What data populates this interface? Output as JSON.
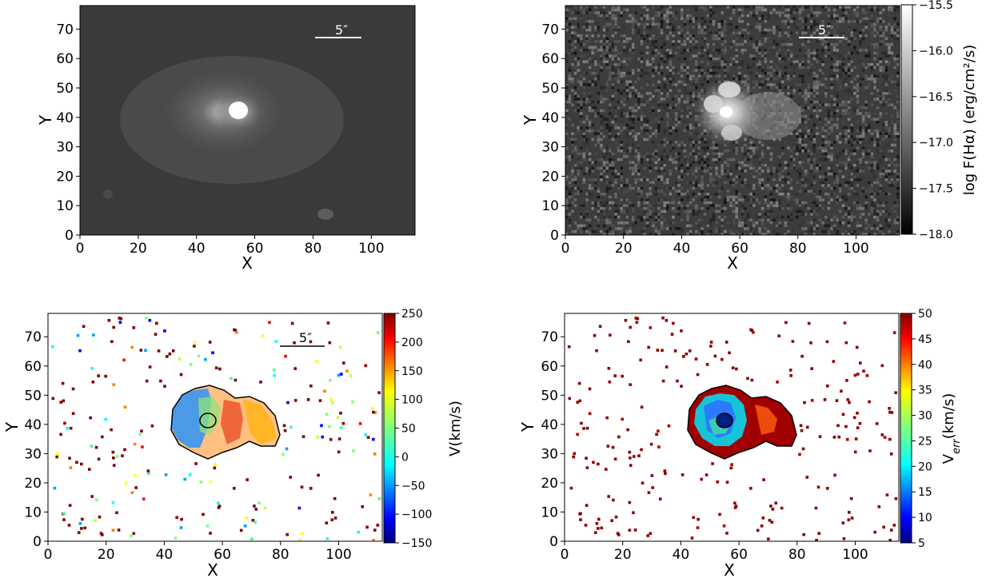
{
  "chart_data": [
    {
      "type": "heatmap",
      "panel": "broadband-image",
      "xlabel": "X",
      "ylabel": "Y",
      "xlim": [
        0,
        115
      ],
      "ylim": [
        0,
        78
      ],
      "xticks": [
        "0",
        "20",
        "40",
        "60",
        "80",
        "100"
      ],
      "yticks": [
        "0",
        "10",
        "20",
        "30",
        "40",
        "50",
        "60",
        "70"
      ],
      "colormap": "gray",
      "scale_bar_label": "5″",
      "colorbar": null
    },
    {
      "type": "heatmap",
      "panel": "halpha-flux-map",
      "xlabel": "X",
      "ylabel": "Y",
      "xlim": [
        0,
        115
      ],
      "ylim": [
        0,
        78
      ],
      "xticks": [
        "0",
        "20",
        "40",
        "60",
        "80",
        "100"
      ],
      "yticks": [
        "0",
        "10",
        "20",
        "30",
        "40",
        "50",
        "60",
        "70"
      ],
      "colormap": "gray",
      "scale_bar_label": "5″",
      "colorbar": {
        "label": "log F(Hα) (erg/cm²/s)",
        "range": [
          -18.0,
          -15.5
        ],
        "ticks": [
          "−15.5",
          "−16.0",
          "−16.5",
          "−17.0",
          "−17.5",
          "−18.0"
        ]
      }
    },
    {
      "type": "heatmap",
      "panel": "velocity-map",
      "xlabel": "X",
      "ylabel": "Y",
      "xlim": [
        0,
        115
      ],
      "ylim": [
        0,
        78
      ],
      "xticks": [
        "0",
        "20",
        "40",
        "60",
        "80",
        "100"
      ],
      "yticks": [
        "0",
        "10",
        "20",
        "30",
        "40",
        "50",
        "60",
        "70"
      ],
      "colormap": "jet",
      "scale_bar_label": "5″",
      "colorbar": {
        "label": "V(km/s)",
        "range": [
          -150,
          250
        ],
        "ticks": [
          "250",
          "200",
          "150",
          "100",
          "50",
          "0",
          "−50",
          "−100",
          "−150"
        ]
      }
    },
    {
      "type": "heatmap",
      "panel": "velocity-error-map",
      "xlabel": "X",
      "ylabel": "Y",
      "xlim": [
        0,
        115
      ],
      "ylim": [
        0,
        78
      ],
      "xticks": [
        "0",
        "20",
        "40",
        "60",
        "80",
        "100"
      ],
      "yticks": [
        "0",
        "10",
        "20",
        "30",
        "40",
        "50",
        "60",
        "70"
      ],
      "colormap": "jet",
      "scale_bar_label": null,
      "colorbar": {
        "label_main": "V",
        "label_sub": "err",
        "label_tail": "(km/s)",
        "range": [
          5,
          50
        ],
        "ticks": [
          "50",
          "45",
          "40",
          "35",
          "30",
          "25",
          "20",
          "15",
          "10",
          "5"
        ]
      }
    }
  ]
}
